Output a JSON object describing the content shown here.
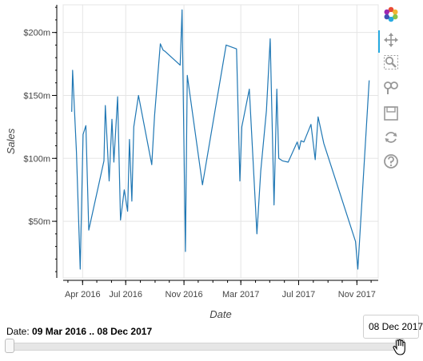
{
  "chart_data": {
    "type": "line",
    "xlabel": "Date",
    "ylabel": "Sales",
    "x_tick_labels": [
      "Apr 2016",
      "Jul 2016",
      "Nov 2016",
      "Mar 2017",
      "Jul 2017",
      "Nov 2017"
    ],
    "y_tick_labels": [
      "$50m",
      "$100m",
      "$150m",
      "$200m"
    ],
    "y_ticks": [
      50,
      100,
      150,
      200
    ],
    "ylim": [
      5,
      222
    ],
    "grid": true,
    "series": [
      {
        "color": "#1f77b4",
        "x": [
          "2016-03-09",
          "2016-03-11",
          "2016-03-19",
          "2016-03-27",
          "2016-04-02",
          "2016-04-08",
          "2016-04-14",
          "2016-05-16",
          "2016-05-19",
          "2016-05-27",
          "2016-06-02",
          "2016-06-06",
          "2016-06-14",
          "2016-06-20",
          "2016-06-28",
          "2016-07-05",
          "2016-07-09",
          "2016-07-14",
          "2016-07-18",
          "2016-07-28",
          "2016-08-25",
          "2016-08-31",
          "2016-09-12",
          "2016-09-18",
          "2016-09-22",
          "2016-10-24",
          "2016-10-28",
          "2016-11-04",
          "2016-11-08",
          "2016-12-10",
          "2017-01-29",
          "2017-02-20",
          "2017-02-27",
          "2017-03-03",
          "2017-03-19",
          "2017-04-04",
          "2017-04-12",
          "2017-04-24",
          "2017-05-02",
          "2017-05-10",
          "2017-05-16",
          "2017-05-20",
          "2017-05-28",
          "2017-06-09",
          "2017-06-28",
          "2017-07-02",
          "2017-07-06",
          "2017-07-12",
          "2017-07-27",
          "2017-08-05",
          "2017-08-11",
          "2017-08-23",
          "2017-10-29",
          "2017-11-03",
          "2017-11-27"
        ],
        "y": [
          137,
          170,
          105,
          12,
          119,
          126,
          43,
          98,
          142,
          82,
          131,
          97,
          149,
          51,
          75,
          58,
          115,
          66,
          125,
          150,
          95,
          134,
          191,
          186,
          185,
          174,
          218,
          26,
          166,
          79,
          190,
          187,
          82,
          125,
          155,
          40,
          90,
          138,
          195,
          63,
          155,
          100,
          98,
          97,
          113,
          107,
          114,
          113,
          127,
          99,
          133,
          112,
          34,
          12,
          162
        ]
      }
    ]
  },
  "toolbar": {
    "tools": [
      "bokeh-logo",
      "pan-tool",
      "box-zoom-tool",
      "wheel-zoom-tool",
      "save-tool",
      "reset-tool",
      "help-tool"
    ]
  },
  "slider": {
    "title_prefix": "Date: ",
    "range_text": "09 Mar 2016 .. 08 Dec 2017",
    "start_value": 0.0,
    "end_value": 1.0,
    "tooltip_text": "08 Dec 2017"
  }
}
